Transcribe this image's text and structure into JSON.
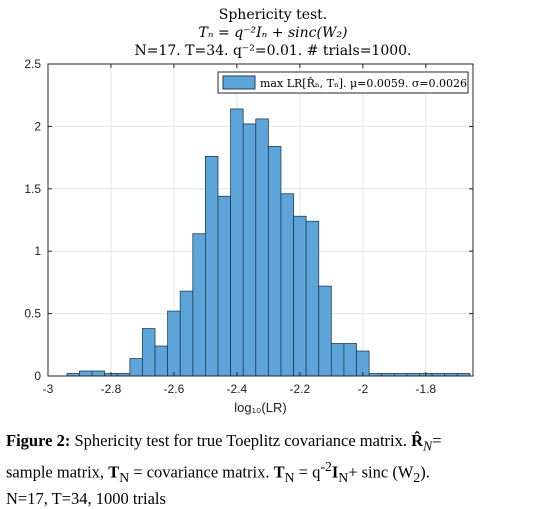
{
  "chart_data": {
    "type": "bar",
    "title_lines": [
      "Sphericity test.",
      "Tₙ = q⁻²Iₙ + sinc(W₂)",
      "N=17. T=34. q⁻²=0.01. # trials=1000."
    ],
    "xlabel": "log₁₀(LR)",
    "ylabel": "",
    "xlim": [
      -3.0,
      -1.65
    ],
    "ylim": [
      0,
      2.5
    ],
    "xticks": [
      -3,
      -2.8,
      -2.6,
      -2.4,
      -2.2,
      -2,
      -1.8
    ],
    "xtick_labels": [
      "-3",
      "-2.8",
      "-2.6",
      "-2.4",
      "-2.2",
      "-2",
      "-1.8"
    ],
    "yticks": [
      0,
      0.5,
      1,
      1.5,
      2,
      2.5
    ],
    "ytick_labels": [
      "0",
      "0.5",
      "1",
      "1.5",
      "2",
      "2.5"
    ],
    "grid": true,
    "legend_position": "top-right",
    "series": [
      {
        "name": "max LR[R̂ₙ, Tₙ]. μ=0.0059. σ=0.0026",
        "bin_width": 0.04,
        "bin_starts": [
          -2.94,
          -2.9,
          -2.86,
          -2.82,
          -2.78,
          -2.74,
          -2.7,
          -2.66,
          -2.62,
          -2.58,
          -2.54,
          -2.5,
          -2.46,
          -2.42,
          -2.38,
          -2.34,
          -2.3,
          -2.26,
          -2.22,
          -2.18,
          -2.14,
          -2.1,
          -2.06,
          -2.02,
          -1.98,
          -1.94,
          -1.9,
          -1.86,
          -1.82,
          -1.78,
          -1.74,
          -1.7
        ],
        "values": [
          0.02,
          0.04,
          0.04,
          0.02,
          0.02,
          0.14,
          0.38,
          0.24,
          0.52,
          0.68,
          1.14,
          1.76,
          1.44,
          2.14,
          2.02,
          2.06,
          1.84,
          1.46,
          1.28,
          1.24,
          0.72,
          0.26,
          0.26,
          0.2,
          0.02,
          0.02,
          0.02,
          0.02,
          0.02,
          0.02,
          0.02,
          0.02
        ]
      }
    ],
    "colors": {
      "bar_fill": "#5DA5D8",
      "bar_edge": "#1F3E5A"
    }
  },
  "caption": {
    "figure_label": "Figure 2:",
    "line1_rest": " Sphericity test for true Toeplitz covariance matrix. ",
    "r_hat_symbol": "R̂",
    "r_hat_sub": "N",
    "line1_end": "=",
    "line2_a": "sample matrix, ",
    "t_symbol_1": "T",
    "t_sub_1": "N",
    "line2_b": " = covariance matrix. ",
    "t_symbol_2": "T",
    "t_sub_2": "N",
    "line2_c": " = q",
    "q_exp": "-2",
    "i_symbol": "I",
    "i_sub": "N",
    "line2_d": "+ sinc (W",
    "w_sub": "2",
    "line2_e": ").",
    "line3": "N=17, T=34, 1000 trials"
  }
}
